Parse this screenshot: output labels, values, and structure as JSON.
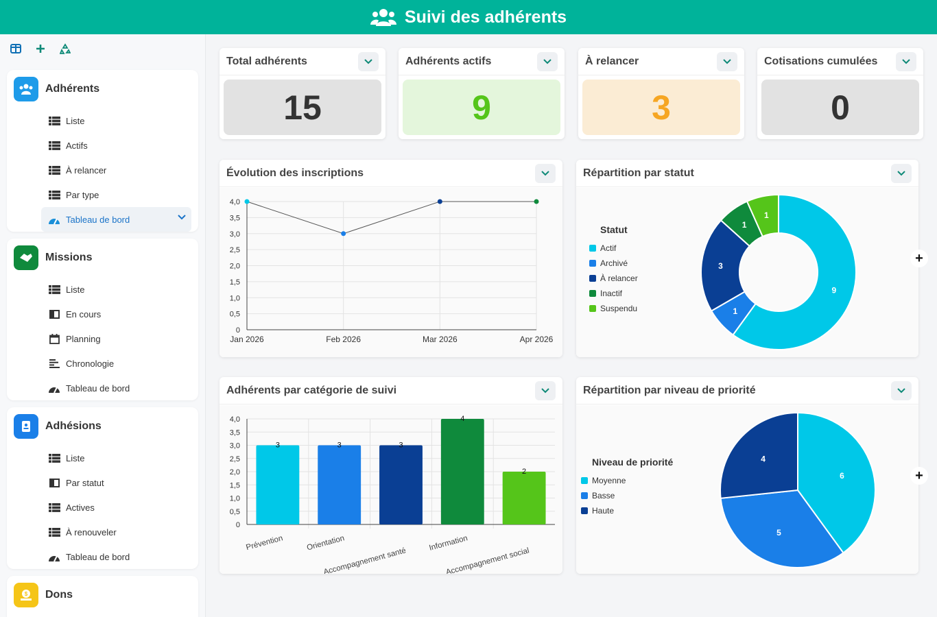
{
  "header": {
    "title": "Suivi des adhérents",
    "icon": "users-icon"
  },
  "toolbar": {
    "icons": [
      "columns-icon",
      "plus-icon",
      "recycle-icon"
    ]
  },
  "sidebar": {
    "sections": [
      {
        "title": "Adhérents",
        "icon": "users-icon",
        "color": "#1e9be9",
        "items": [
          {
            "label": "Liste",
            "icon": "list-icon"
          },
          {
            "label": "Actifs",
            "icon": "list-icon"
          },
          {
            "label": "À relancer",
            "icon": "list-icon"
          },
          {
            "label": "Par type",
            "icon": "list-icon"
          },
          {
            "label": "Tableau de bord",
            "icon": "dashboard-icon"
          }
        ]
      },
      {
        "title": "Missions",
        "icon": "handshake-icon",
        "color": "#0f8a3c",
        "items": [
          {
            "label": "Liste",
            "icon": "list-icon"
          },
          {
            "label": "En cours",
            "icon": "board-icon"
          },
          {
            "label": "Planning",
            "icon": "calendar-icon"
          },
          {
            "label": "Chronologie",
            "icon": "timeline-icon"
          },
          {
            "label": "Tableau de bord",
            "icon": "dashboard-icon"
          }
        ]
      },
      {
        "title": "Adhésions",
        "icon": "id-card-icon",
        "color": "#1a7fe8",
        "items": [
          {
            "label": "Liste",
            "icon": "list-icon"
          },
          {
            "label": "Par statut",
            "icon": "board-icon"
          },
          {
            "label": "Actives",
            "icon": "list-icon"
          },
          {
            "label": "À renouveler",
            "icon": "list-icon"
          },
          {
            "label": "Tableau de bord",
            "icon": "dashboard-icon"
          }
        ]
      },
      {
        "title": "Dons",
        "icon": "donation-icon",
        "color": "#f5c518",
        "items": []
      }
    ]
  },
  "kpis": [
    {
      "label": "Total adhérents",
      "value": "15",
      "bg": "#e2e2e2",
      "fg": "#333333"
    },
    {
      "label": "Adhérents actifs",
      "value": "9",
      "bg": "#e4f6dc",
      "fg": "#55c51a"
    },
    {
      "label": "À relancer",
      "value": "3",
      "bg": "#fbecd4",
      "fg": "#f6a623"
    },
    {
      "label": "Cotisations cumulées",
      "value": "0",
      "bg": "#e2e2e2",
      "fg": "#333333"
    }
  ],
  "charts": {
    "line_title": "Évolution des inscriptions",
    "status_title": "Répartition par statut",
    "bar_title": "Adhérents par catégorie de suivi",
    "priority_title": "Répartition par niveau de priorité"
  },
  "chart_data": [
    {
      "type": "line",
      "x": [
        "Jan 2026",
        "Feb 2026",
        "Mar 2026",
        "Apr 2026"
      ],
      "values": [
        4,
        3,
        4,
        4
      ],
      "point_colors": [
        "#00c8e8",
        "#1a7fe8",
        "#0a3f94",
        "#0f8a3c"
      ],
      "ylim": [
        0,
        4
      ],
      "yticks": [
        "0",
        "0,5",
        "1,0",
        "1,5",
        "2,0",
        "2,5",
        "3,0",
        "3,5",
        "4,0"
      ]
    },
    {
      "type": "pie",
      "legend_title": "Statut",
      "labels": [
        "Actif",
        "Archivé",
        "À relancer",
        "Inactif",
        "Suspendu"
      ],
      "values": [
        9,
        1,
        3,
        1,
        1
      ],
      "colors": [
        "#00c8e8",
        "#1a7fe8",
        "#0a3f94",
        "#0f8a3c",
        "#55c51a"
      ]
    },
    {
      "type": "bar",
      "categories": [
        "Prévention",
        "Orientation",
        "Accompagnement santé",
        "Information",
        "Accompagnement social"
      ],
      "values": [
        3,
        3,
        3,
        4,
        2
      ],
      "colors": [
        "#00c8e8",
        "#1a7fe8",
        "#0a3f94",
        "#0f8a3c",
        "#55c51a"
      ],
      "ylim": [
        0,
        4
      ],
      "yticks": [
        "0",
        "0,5",
        "1,0",
        "1,5",
        "2,0",
        "2,5",
        "3,0",
        "3,5",
        "4,0"
      ]
    },
    {
      "type": "pie",
      "legend_title": "Niveau de priorité",
      "labels": [
        "Moyenne",
        "Basse",
        "Haute"
      ],
      "values": [
        6,
        5,
        4
      ],
      "colors": [
        "#00c8e8",
        "#1a7fe8",
        "#0a3f94"
      ]
    }
  ]
}
